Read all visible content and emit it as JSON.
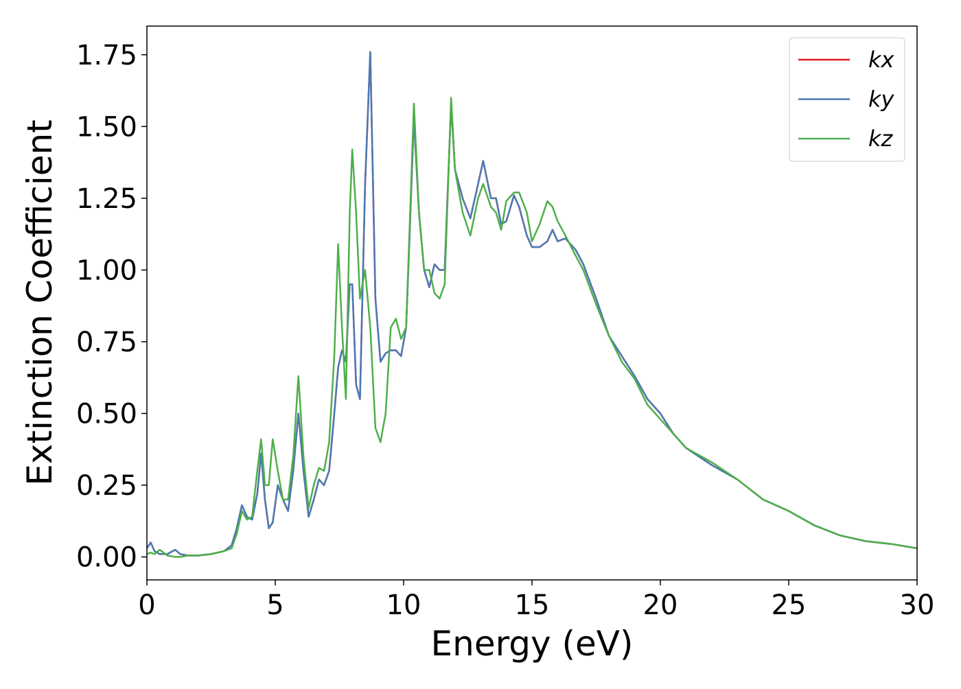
{
  "chart_data": {
    "type": "line",
    "xlabel": "Energy (eV)",
    "ylabel": "Extinction Coefficient",
    "xlim": [
      0,
      30
    ],
    "ylim": [
      -0.08,
      1.85
    ],
    "xticks": [
      0,
      5,
      10,
      15,
      20,
      25,
      30
    ],
    "yticks": [
      {
        "value": 0,
        "label": "0.00"
      },
      {
        "value": 0.25,
        "label": "0.25"
      },
      {
        "value": 0.5,
        "label": "0.50"
      },
      {
        "value": 0.75,
        "label": "0.75"
      },
      {
        "value": 1,
        "label": "1.00"
      },
      {
        "value": 1.25,
        "label": "1.25"
      },
      {
        "value": 1.5,
        "label": "1.50"
      },
      {
        "value": 1.75,
        "label": "1.75"
      }
    ],
    "grid": false,
    "legend": "upper right",
    "x": [
      0,
      0.15,
      0.3,
      0.5,
      0.8,
      1.1,
      1.3,
      1.6,
      2,
      2.5,
      3,
      3.3,
      3.5,
      3.7,
      3.9,
      4.1,
      4.3,
      4.45,
      4.6,
      4.75,
      4.9,
      5.1,
      5.3,
      5.5,
      5.7,
      5.9,
      6.1,
      6.3,
      6.5,
      6.7,
      6.9,
      7.1,
      7.3,
      7.45,
      7.6,
      7.75,
      7.9,
      8.0,
      8.15,
      8.3,
      8.5,
      8.7,
      8.9,
      9.1,
      9.3,
      9.5,
      9.7,
      9.9,
      10.1,
      10.4,
      10.6,
      10.8,
      11.0,
      11.2,
      11.4,
      11.6,
      11.85,
      12.0,
      12.3,
      12.6,
      12.9,
      13.1,
      13.4,
      13.6,
      13.8,
      14.0,
      14.3,
      14.5,
      14.8,
      15.0,
      15.3,
      15.6,
      15.8,
      16.0,
      16.3,
      16.7,
      17,
      17.5,
      18,
      18.5,
      19,
      19.5,
      20,
      20.5,
      21,
      22,
      23,
      24,
      25,
      26,
      27,
      28,
      29,
      30
    ],
    "series": [
      {
        "name": "kx",
        "color": "#e41a1c",
        "values": [
          0.03,
          0.05,
          0.02,
          0.01,
          0.01,
          0.025,
          0.01,
          0.005,
          0.005,
          0.01,
          0.02,
          0.04,
          0.1,
          0.18,
          0.14,
          0.13,
          0.22,
          0.36,
          0.2,
          0.1,
          0.12,
          0.25,
          0.2,
          0.16,
          0.3,
          0.5,
          0.3,
          0.14,
          0.2,
          0.27,
          0.25,
          0.3,
          0.5,
          0.66,
          0.72,
          0.68,
          0.95,
          0.95,
          0.6,
          0.55,
          1.3,
          1.76,
          0.9,
          0.68,
          0.71,
          0.72,
          0.72,
          0.7,
          0.8,
          1.53,
          1.2,
          1.0,
          0.94,
          1.02,
          1.0,
          1.0,
          1.58,
          1.35,
          1.25,
          1.18,
          1.3,
          1.38,
          1.25,
          1.25,
          1.16,
          1.17,
          1.26,
          1.22,
          1.12,
          1.08,
          1.08,
          1.1,
          1.14,
          1.1,
          1.11,
          1.07,
          1.02,
          0.9,
          0.77,
          0.7,
          0.63,
          0.55,
          0.5,
          0.43,
          0.38,
          0.32,
          0.27,
          0.2,
          0.16,
          0.11,
          0.075,
          0.055,
          0.045,
          0.03
        ]
      },
      {
        "name": "ky",
        "color": "#4a7ab5",
        "values": [
          0.03,
          0.05,
          0.02,
          0.01,
          0.01,
          0.025,
          0.01,
          0.005,
          0.005,
          0.01,
          0.02,
          0.04,
          0.1,
          0.18,
          0.14,
          0.13,
          0.22,
          0.36,
          0.2,
          0.1,
          0.12,
          0.25,
          0.2,
          0.16,
          0.3,
          0.5,
          0.3,
          0.14,
          0.2,
          0.27,
          0.25,
          0.3,
          0.5,
          0.66,
          0.72,
          0.68,
          0.95,
          0.95,
          0.6,
          0.55,
          1.3,
          1.76,
          0.9,
          0.68,
          0.71,
          0.72,
          0.72,
          0.7,
          0.8,
          1.53,
          1.2,
          1.0,
          0.94,
          1.02,
          1.0,
          1.0,
          1.58,
          1.35,
          1.25,
          1.18,
          1.3,
          1.38,
          1.25,
          1.25,
          1.16,
          1.17,
          1.26,
          1.22,
          1.12,
          1.08,
          1.08,
          1.1,
          1.14,
          1.1,
          1.11,
          1.07,
          1.02,
          0.9,
          0.77,
          0.7,
          0.63,
          0.55,
          0.5,
          0.43,
          0.38,
          0.32,
          0.27,
          0.2,
          0.16,
          0.11,
          0.075,
          0.055,
          0.045,
          0.03
        ]
      },
      {
        "name": "kz",
        "color": "#4daf4a",
        "values": [
          0.01,
          0.015,
          0.01,
          0.025,
          0.005,
          0.0,
          0.0,
          0.005,
          0.005,
          0.01,
          0.02,
          0.03,
          0.08,
          0.16,
          0.13,
          0.14,
          0.3,
          0.41,
          0.25,
          0.25,
          0.41,
          0.3,
          0.2,
          0.2,
          0.35,
          0.63,
          0.35,
          0.17,
          0.25,
          0.31,
          0.3,
          0.4,
          0.7,
          1.09,
          0.8,
          0.55,
          1.2,
          1.42,
          1.2,
          0.9,
          1.0,
          0.8,
          0.45,
          0.4,
          0.5,
          0.8,
          0.83,
          0.76,
          0.8,
          1.58,
          1.2,
          1.0,
          1.0,
          0.92,
          0.9,
          0.95,
          1.6,
          1.35,
          1.2,
          1.12,
          1.25,
          1.3,
          1.22,
          1.2,
          1.14,
          1.24,
          1.27,
          1.27,
          1.2,
          1.1,
          1.16,
          1.24,
          1.22,
          1.17,
          1.12,
          1.05,
          1.0,
          0.88,
          0.77,
          0.68,
          0.62,
          0.53,
          0.48,
          0.43,
          0.38,
          0.33,
          0.27,
          0.2,
          0.16,
          0.11,
          0.075,
          0.055,
          0.045,
          0.03
        ]
      }
    ]
  }
}
